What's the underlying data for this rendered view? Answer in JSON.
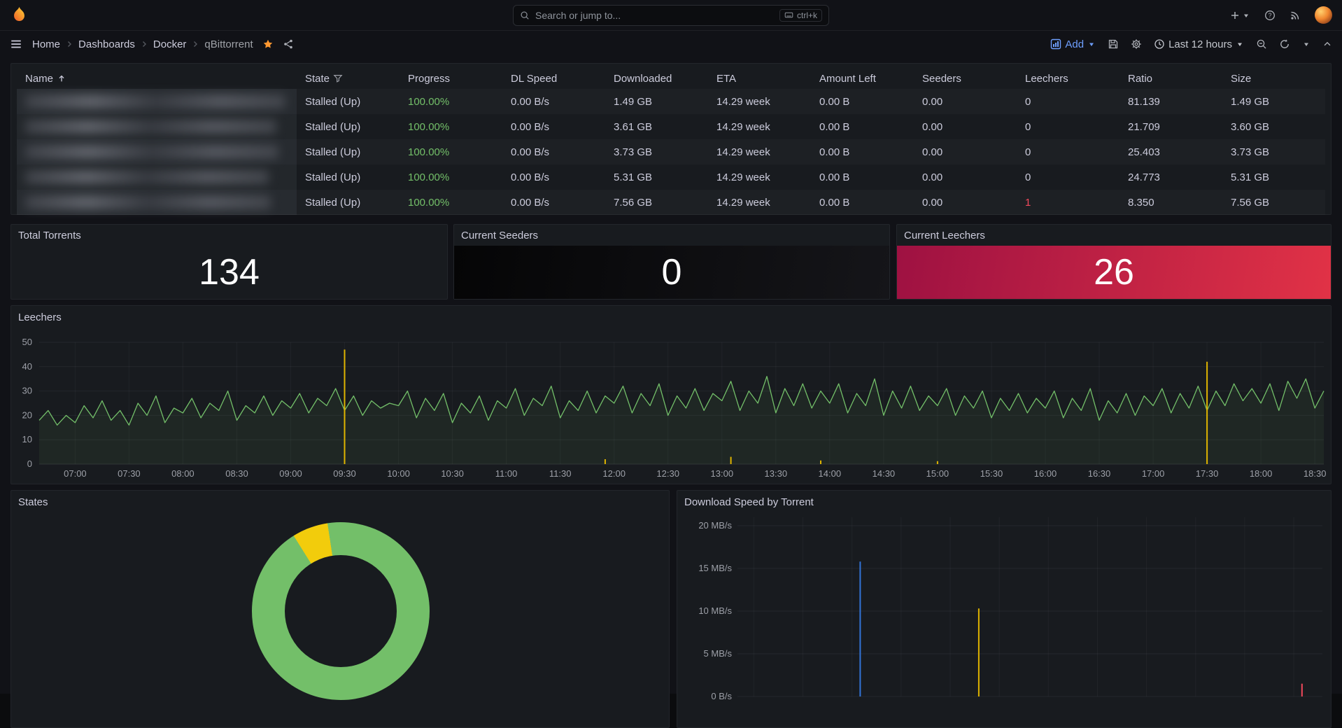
{
  "colors": {
    "page_bg": "#111217",
    "panel_bg": "#181b1f",
    "panel_border": "#23262b",
    "text_primary": "#ccccdc",
    "text_secondary": "#9da0a8",
    "accent_blue": "#6e9fff",
    "green": "#73bf69",
    "yellow": "#f2cc0c",
    "gold": "#dfb400",
    "red": "#f2495c",
    "blue": "#3274d9",
    "orange": "#ff9830",
    "seeders_grad_start": "#050506",
    "seeders_grad_end": "#151519",
    "leechers_grad_start": "#9e1142",
    "leechers_grad_end": "#e13246"
  },
  "topnav": {
    "search_placeholder": "Search or jump to...",
    "shortcut": "ctrl+k"
  },
  "breadcrumb": {
    "items": [
      "Home",
      "Dashboards",
      "Docker",
      "qBittorrent"
    ]
  },
  "toolbar": {
    "add_label": "Add",
    "time_range": "Last 12 hours"
  },
  "table": {
    "columns": [
      {
        "label": "Name",
        "sort": "asc"
      },
      {
        "label": "State",
        "filter": true
      },
      {
        "label": "Progress"
      },
      {
        "label": "DL Speed"
      },
      {
        "label": "Downloaded"
      },
      {
        "label": "ETA"
      },
      {
        "label": "Amount Left"
      },
      {
        "label": "Seeders"
      },
      {
        "label": "Leechers"
      },
      {
        "label": "Ratio"
      },
      {
        "label": "Size"
      }
    ],
    "rows": [
      {
        "name_blurred": true,
        "state": "Stalled (Up)",
        "progress": "100.00%",
        "dl_speed": "0.00 B/s",
        "downloaded": "1.49 GB",
        "eta": "14.29 week",
        "amount_left": "0.00 B",
        "seeders": "0.00",
        "leechers": "0",
        "ratio": "81.139",
        "size": "1.49 GB",
        "leechers_alert": false
      },
      {
        "name_blurred": true,
        "state": "Stalled (Up)",
        "progress": "100.00%",
        "dl_speed": "0.00 B/s",
        "downloaded": "3.61 GB",
        "eta": "14.29 week",
        "amount_left": "0.00 B",
        "seeders": "0.00",
        "leechers": "0",
        "ratio": "21.709",
        "size": "3.60 GB",
        "leechers_alert": false
      },
      {
        "name_blurred": true,
        "state": "Stalled (Up)",
        "progress": "100.00%",
        "dl_speed": "0.00 B/s",
        "downloaded": "3.73 GB",
        "eta": "14.29 week",
        "amount_left": "0.00 B",
        "seeders": "0.00",
        "leechers": "0",
        "ratio": "25.403",
        "size": "3.73 GB",
        "leechers_alert": false
      },
      {
        "name_blurred": true,
        "state": "Stalled (Up)",
        "progress": "100.00%",
        "dl_speed": "0.00 B/s",
        "downloaded": "5.31 GB",
        "eta": "14.29 week",
        "amount_left": "0.00 B",
        "seeders": "0.00",
        "leechers": "0",
        "ratio": "24.773",
        "size": "5.31 GB",
        "leechers_alert": false
      },
      {
        "name_blurred": true,
        "state": "Stalled (Up)",
        "progress": "100.00%",
        "dl_speed": "0.00 B/s",
        "downloaded": "7.56 GB",
        "eta": "14.29 week",
        "amount_left": "0.00 B",
        "seeders": "0.00",
        "leechers": "1",
        "ratio": "8.350",
        "size": "7.56 GB",
        "leechers_alert": true
      }
    ]
  },
  "stats": [
    {
      "title": "Total Torrents",
      "value": "134"
    },
    {
      "title": "Current Seeders",
      "value": "0"
    },
    {
      "title": "Current Leechers",
      "value": "26"
    }
  ],
  "chart_data": [
    {
      "type": "line",
      "title": "Leechers",
      "x_start": "06:40",
      "x_end": "18:35",
      "x_ticks": [
        "07:00",
        "07:30",
        "08:00",
        "08:30",
        "09:00",
        "09:30",
        "10:00",
        "10:30",
        "11:00",
        "11:30",
        "12:00",
        "12:30",
        "13:00",
        "13:30",
        "14:00",
        "14:30",
        "15:00",
        "15:30",
        "16:00",
        "16:30",
        "17:00",
        "17:30",
        "18:00",
        "18:30"
      ],
      "y_ticks": [
        0,
        10,
        20,
        30,
        40,
        50
      ],
      "ylim": [
        0,
        50
      ],
      "grid": true,
      "legend": "off",
      "series": [
        {
          "name": "leechers",
          "color_key": "green",
          "values": [
            18,
            22,
            16,
            20,
            17,
            24,
            19,
            26,
            18,
            22,
            16,
            25,
            20,
            28,
            17,
            23,
            21,
            27,
            19,
            25,
            22,
            30,
            18,
            24,
            21,
            28,
            20,
            26,
            23,
            29,
            21,
            27,
            24,
            31,
            22,
            28,
            20,
            26,
            23,
            25,
            24,
            30,
            19,
            27,
            22,
            29,
            17,
            25,
            21,
            28,
            18,
            26,
            23,
            31,
            20,
            27,
            24,
            32,
            19,
            26,
            22,
            30,
            21,
            28,
            25,
            32,
            21,
            29,
            24,
            33,
            20,
            28,
            23,
            31,
            22,
            29,
            26,
            34,
            22,
            30,
            25,
            36,
            21,
            31,
            24,
            33,
            23,
            30,
            25,
            33,
            21,
            29,
            24,
            35,
            20,
            30,
            23,
            32,
            22,
            28,
            24,
            31,
            20,
            28,
            23,
            30,
            19,
            27,
            22,
            29,
            21,
            27,
            23,
            30,
            19,
            27,
            22,
            31,
            18,
            26,
            21,
            29,
            20,
            28,
            24,
            31,
            21,
            29,
            23,
            32,
            22,
            30,
            24,
            33,
            26,
            31,
            25,
            33,
            22,
            34,
            27,
            35,
            23,
            30
          ]
        },
        {
          "name": "spikes",
          "color_key": "gold",
          "spikes": [
            {
              "t": "09:30",
              "v": 47
            },
            {
              "t": "11:55",
              "v": 2
            },
            {
              "t": "13:05",
              "v": 3
            },
            {
              "t": "13:55",
              "v": 1.5
            },
            {
              "t": "15:00",
              "v": 1.2
            },
            {
              "t": "17:30",
              "v": 42
            }
          ]
        }
      ]
    },
    {
      "type": "pie",
      "title": "States",
      "donut": true,
      "rotation_deg": 328,
      "slices": [
        {
          "name": "yellow-slice",
          "color_key": "yellow",
          "fraction": 0.065
        },
        {
          "name": "green-slice",
          "color_key": "green",
          "fraction": 0.935
        }
      ]
    },
    {
      "type": "line",
      "title": "Download Speed by Torrent",
      "x_start": "06:40",
      "x_end": "18:35",
      "y_tick_labels": [
        "20 MB/s",
        "15 MB/s",
        "10 MB/s",
        "5 MB/s",
        "0 B/s"
      ],
      "y_tick_values_mbps": [
        20,
        15,
        10,
        5,
        0
      ],
      "ylim_mbps": [
        0,
        22
      ],
      "spikes": [
        {
          "t": "09:10",
          "mbps": 15.8,
          "color_key": "blue"
        },
        {
          "t": "11:35",
          "mbps": 10.3,
          "color_key": "gold"
        },
        {
          "t": "18:10",
          "mbps": 1.5,
          "color_key": "red"
        }
      ]
    }
  ]
}
